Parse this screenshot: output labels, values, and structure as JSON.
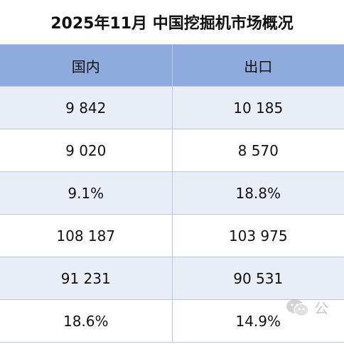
{
  "title": "2025年11月 中国挖掘机市场概况",
  "table": {
    "headers": [
      "国内",
      "出口"
    ],
    "rows": [
      [
        "9 842",
        "10 185"
      ],
      [
        "9 020",
        "8 570"
      ],
      [
        "9.1%",
        "18.8%"
      ],
      [
        "108 187",
        "103 975"
      ],
      [
        "91 231",
        "90 531"
      ],
      [
        "18.6%",
        "14.9%"
      ]
    ]
  },
  "watermark": {
    "icon": "wechat-icon",
    "text": "公"
  },
  "colors": {
    "header_bg": "#8faadc",
    "alt_row_bg": "#e9edf6",
    "border": "#b9c6e4"
  }
}
